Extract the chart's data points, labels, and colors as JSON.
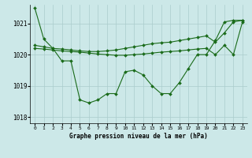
{
  "title": "Graphe pression niveau de la mer (hPa)",
  "background_color": "#cce8e8",
  "grid_color": "#aacccc",
  "line_color": "#1a6b1a",
  "ylim": [
    1017.8,
    1021.6
  ],
  "xlim": [
    -0.5,
    23.5
  ],
  "yticks": [
    1018,
    1019,
    1020,
    1021
  ],
  "xticks": [
    0,
    1,
    2,
    3,
    4,
    5,
    6,
    7,
    8,
    9,
    10,
    11,
    12,
    13,
    14,
    15,
    16,
    17,
    18,
    19,
    20,
    21,
    22,
    23
  ],
  "series": [
    [
      1021.5,
      1020.5,
      1020.2,
      1019.8,
      1019.8,
      1018.55,
      1018.45,
      1018.55,
      1018.75,
      1018.75,
      1019.45,
      1019.5,
      1019.35,
      1019.0,
      1018.75,
      1018.75,
      1019.1,
      1019.55,
      1020.0,
      1020.0,
      1020.45,
      1021.05,
      1021.1,
      1021.1
    ],
    [
      1020.3,
      1020.25,
      1020.2,
      1020.18,
      1020.15,
      1020.12,
      1020.1,
      1020.1,
      1020.12,
      1020.15,
      1020.2,
      1020.25,
      1020.3,
      1020.35,
      1020.38,
      1020.4,
      1020.45,
      1020.5,
      1020.55,
      1020.6,
      1020.4,
      1020.7,
      1021.05,
      1021.1
    ],
    [
      1020.2,
      1020.18,
      1020.15,
      1020.12,
      1020.1,
      1020.08,
      1020.05,
      1020.02,
      1020.0,
      1019.98,
      1019.98,
      1020.0,
      1020.02,
      1020.05,
      1020.08,
      1020.1,
      1020.12,
      1020.15,
      1020.18,
      1020.2,
      1020.0,
      1020.3,
      1020.0,
      1021.05
    ]
  ],
  "markersize": 2.0,
  "linewidth": 0.8,
  "figsize": [
    3.2,
    2.0
  ],
  "dpi": 100
}
